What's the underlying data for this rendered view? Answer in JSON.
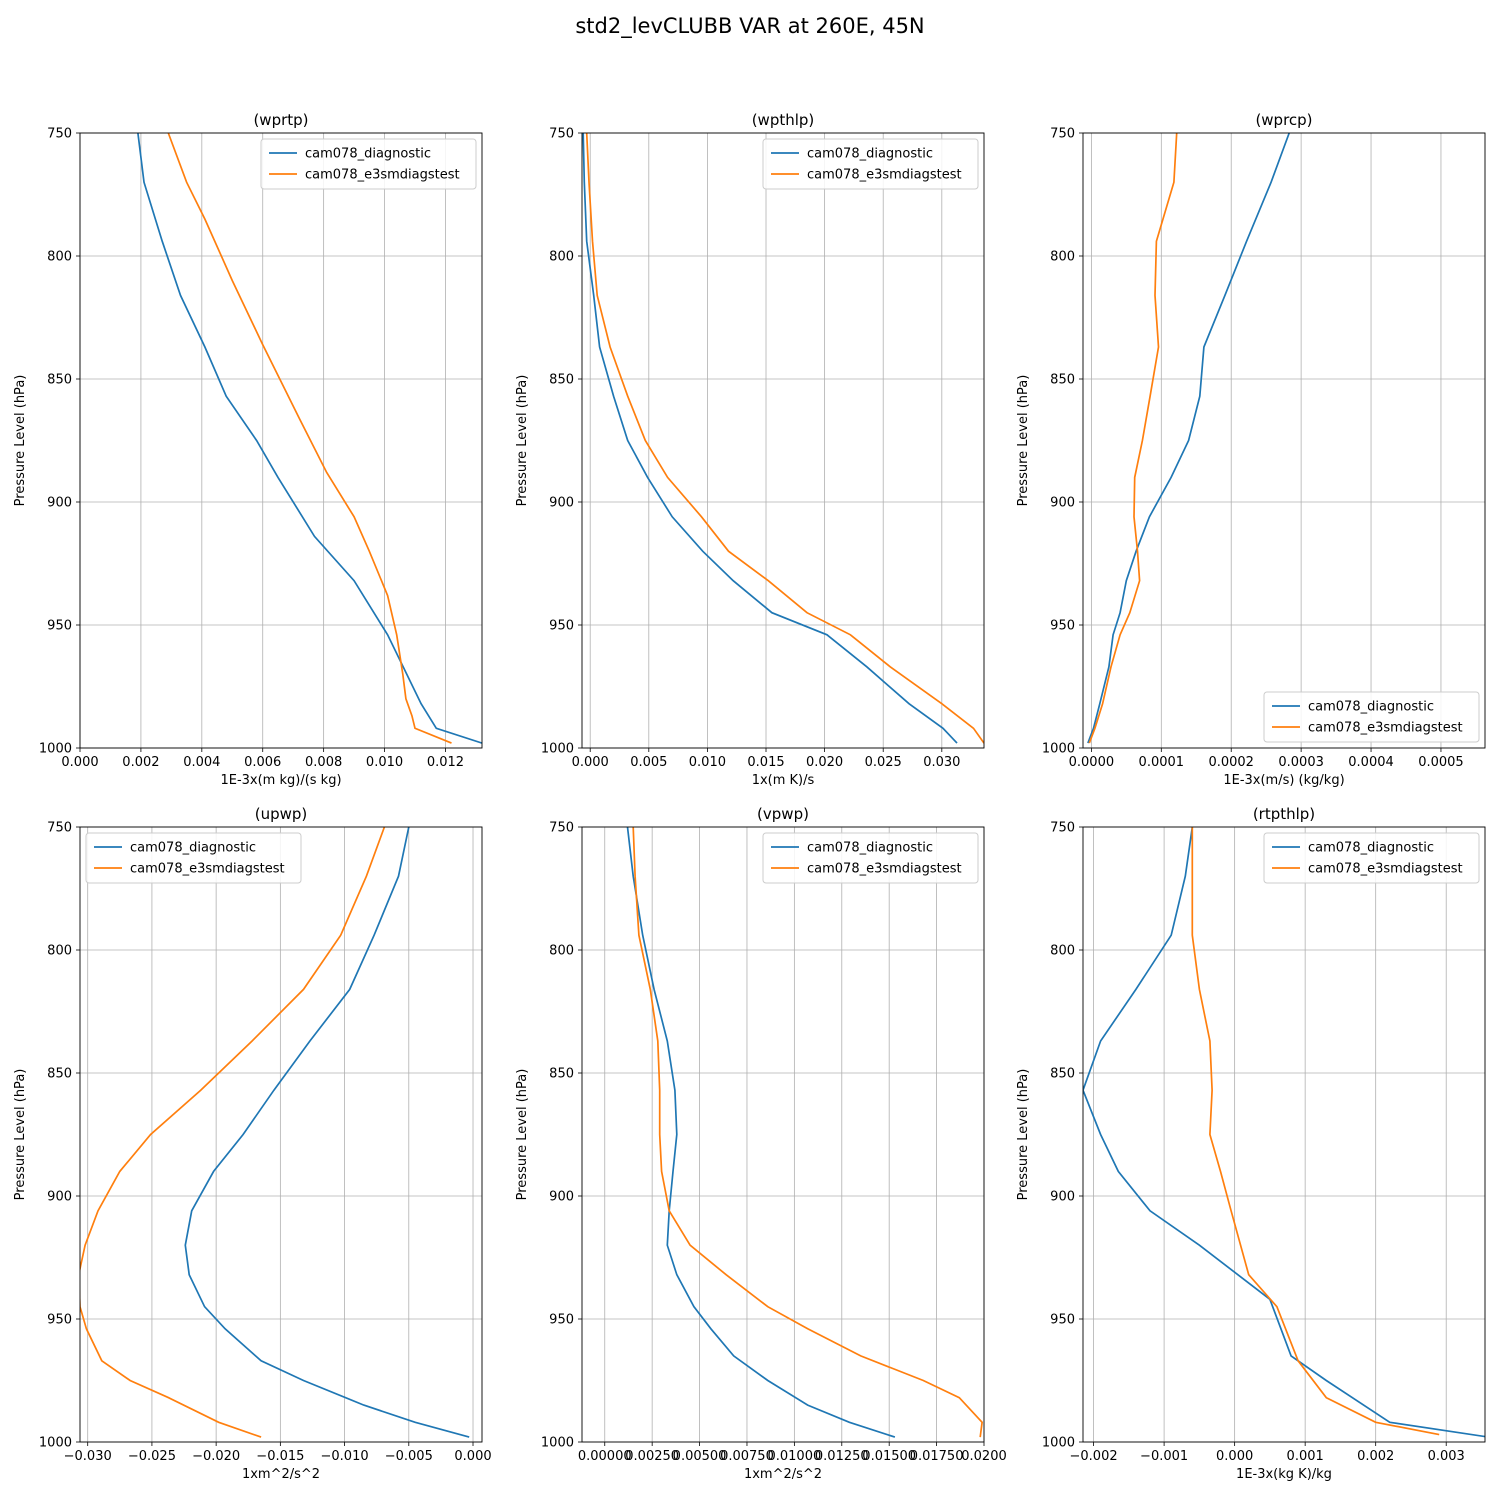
{
  "figure": {
    "title": "std2_levCLUBB VAR at 260E, 45N",
    "colors": {
      "diagnostic": "#1f77b4",
      "e3smdiagstest": "#ff7f0e",
      "grid": "#b0b0b0"
    }
  },
  "chart_data": [
    {
      "type": "line",
      "title": "(wprtp)",
      "xlabel": "1E-3x(m kg)/(s kg)",
      "ylabel": "Pressure Level (hPa)",
      "xlim": [
        0,
        0.0132
      ],
      "ylim": [
        1000,
        750
      ],
      "y_inverted": true,
      "grid": true,
      "legend": "upper right",
      "xticks": [
        "0.000",
        "0.002",
        "0.004",
        "0.006",
        "0.008",
        "0.010",
        "0.012"
      ],
      "yticks": [
        "750",
        "800",
        "850",
        "900",
        "950",
        "1000"
      ],
      "series": [
        {
          "name": "cam078_diagnostic",
          "x": [
            0.0019,
            0.0021,
            0.0027,
            0.0033,
            0.0041,
            0.0048,
            0.0058,
            0.0065,
            0.0077,
            0.009,
            0.0101,
            0.0112,
            0.0117,
            0.0132
          ],
          "y": [
            750,
            770,
            794,
            816,
            837,
            857,
            875,
            890,
            914,
            932,
            954,
            982,
            992,
            998
          ]
        },
        {
          "name": "cam078_e3smdiagstest",
          "x": [
            0.0029,
            0.0035,
            0.0041,
            0.005,
            0.006,
            0.0072,
            0.0081,
            0.009,
            0.0095,
            0.0101,
            0.0104,
            0.0106,
            0.0107,
            0.0109,
            0.011,
            0.0122
          ],
          "y": [
            750,
            770,
            785,
            810,
            836,
            866,
            888,
            906,
            920,
            938,
            954,
            970,
            980,
            987,
            992,
            998
          ]
        }
      ]
    },
    {
      "type": "line",
      "title": "(wpthlp)",
      "xlabel": "1x(m K)/s",
      "ylabel": "Pressure Level (hPa)",
      "xlim": [
        -0.0007,
        0.0336
      ],
      "ylim": [
        1000,
        750
      ],
      "y_inverted": true,
      "grid": true,
      "legend": "upper right",
      "xticks": [
        "0.000",
        "0.005",
        "0.010",
        "0.015",
        "0.020",
        "0.025",
        "0.030"
      ],
      "yticks": [
        "750",
        "800",
        "850",
        "900",
        "950",
        "1000"
      ],
      "series": [
        {
          "name": "cam078_diagnostic",
          "x": [
            -0.0006,
            -0.0005,
            -0.0003,
            0.0003,
            0.0008,
            0.002,
            0.0032,
            0.0049,
            0.007,
            0.0096,
            0.0122,
            0.0155,
            0.0202,
            0.0236,
            0.0272,
            0.0301,
            0.0313
          ],
          "y": [
            750,
            770,
            794,
            816,
            837,
            857,
            875,
            890,
            906,
            920,
            932,
            945,
            954,
            967,
            982,
            992,
            998
          ]
        },
        {
          "name": "cam078_e3smdiagstest",
          "x": [
            -0.0003,
            -0.0001,
            0.0002,
            0.0006,
            0.0017,
            0.0032,
            0.0047,
            0.0066,
            0.0095,
            0.0118,
            0.0152,
            0.0185,
            0.0222,
            0.0256,
            0.03,
            0.0327,
            0.0336
          ],
          "y": [
            750,
            770,
            794,
            816,
            837,
            857,
            875,
            890,
            906,
            920,
            932,
            945,
            954,
            967,
            982,
            992,
            998
          ]
        }
      ]
    },
    {
      "type": "line",
      "title": "(wprcp)",
      "xlabel": "1E-3x(m/s) (kg/kg)",
      "ylabel": "Pressure Level (hPa)",
      "xlim": [
        -1.2e-05,
        0.000563
      ],
      "ylim": [
        1000,
        750
      ],
      "y_inverted": true,
      "grid": true,
      "legend": "lower right",
      "xticks": [
        "0.0000",
        "0.0001",
        "0.0002",
        "0.0003",
        "0.0004",
        "0.0005"
      ],
      "yticks": [
        "750",
        "800",
        "850",
        "900",
        "950",
        "1000"
      ],
      "series": [
        {
          "name": "cam078_diagnostic",
          "x": [
            0.000283,
            0.000257,
            0.000222,
            0.000191,
            0.000161,
            0.000155,
            0.000139,
            0.000114,
            8.3e-05,
            6.4e-05,
            5e-05,
            4.1e-05,
            3.1e-05,
            2.5e-05,
            1.2e-05,
            3e-06,
            -5e-06
          ],
          "y": [
            750,
            770,
            794,
            816,
            837,
            857,
            875,
            890,
            906,
            920,
            932,
            945,
            954,
            967,
            982,
            992,
            998
          ]
        },
        {
          "name": "cam078_e3smdiagstest",
          "x": [
            0.000122,
            0.000118,
            9.3e-05,
            9.1e-05,
            9.6e-05,
            8.4e-05,
            7.3e-05,
            6.2e-05,
            6.1e-05,
            6.6e-05,
            6.9e-05,
            5.5e-05,
            4.1e-05,
            2.8e-05,
            1.6e-05,
            5e-06,
            -3e-06
          ],
          "y": [
            750,
            770,
            794,
            816,
            837,
            857,
            875,
            890,
            906,
            920,
            932,
            945,
            954,
            967,
            982,
            992,
            998
          ]
        }
      ]
    },
    {
      "type": "line",
      "title": "(upwp)",
      "xlabel": "1xm^2/s^2",
      "ylabel": "Pressure Level (hPa)",
      "xlim": [
        -0.0306,
        0.0007
      ],
      "ylim": [
        1000,
        750
      ],
      "y_inverted": true,
      "grid": true,
      "legend": "upper left",
      "xticks": [
        "−0.030",
        "−0.025",
        "−0.020",
        "−0.015",
        "−0.010",
        "−0.005",
        "0.000"
      ],
      "yticks": [
        "750",
        "800",
        "850",
        "900",
        "950",
        "1000"
      ],
      "series": [
        {
          "name": "cam078_diagnostic",
          "x": [
            -0.005,
            -0.0058,
            -0.0077,
            -0.0096,
            -0.0127,
            -0.0155,
            -0.0179,
            -0.0202,
            -0.0219,
            -0.0224,
            -0.0221,
            -0.0209,
            -0.0193,
            -0.0165,
            -0.0132,
            -0.0085,
            -0.0045,
            -0.0003
          ],
          "y": [
            750,
            770,
            794,
            816,
            837,
            857,
            875,
            890,
            906,
            920,
            932,
            945,
            954,
            967,
            975,
            985,
            992,
            998
          ]
        },
        {
          "name": "cam078_e3smdiagstest",
          "x": [
            -0.0069,
            -0.0083,
            -0.0103,
            -0.0132,
            -0.0172,
            -0.0212,
            -0.0251,
            -0.0275,
            -0.0292,
            -0.0302,
            -0.0307,
            -0.0306,
            -0.0301,
            -0.0289,
            -0.0267,
            -0.0237,
            -0.0198,
            -0.0165
          ],
          "y": [
            750,
            770,
            794,
            816,
            837,
            857,
            875,
            890,
            906,
            920,
            932,
            945,
            954,
            967,
            975,
            982,
            992,
            998
          ]
        }
      ]
    },
    {
      "type": "line",
      "title": "(vpwp)",
      "xlabel": "1xm^2/s^2",
      "ylabel": "Pressure Level (hPa)",
      "xlim": [
        -0.0012,
        0.02
      ],
      "ylim": [
        1000,
        750
      ],
      "y_inverted": true,
      "grid": true,
      "legend": "upper right",
      "xticks": [
        "0.00000",
        "0.00250",
        "0.00500",
        "0.00750",
        "0.01000",
        "0.01250",
        "0.01500",
        "0.01750",
        "0.0200"
      ],
      "yticks": [
        "750",
        "800",
        "850",
        "900",
        "950",
        "1000"
      ],
      "series": [
        {
          "name": "cam078_diagnostic",
          "x": [
            0.0012,
            0.0015,
            0.002,
            0.0026,
            0.0033,
            0.0037,
            0.0038,
            0.0036,
            0.0034,
            0.0033,
            0.0038,
            0.0047,
            0.0056,
            0.0068,
            0.0086,
            0.0107,
            0.0129,
            0.0153
          ],
          "y": [
            750,
            770,
            794,
            816,
            837,
            857,
            875,
            890,
            906,
            920,
            932,
            945,
            954,
            965,
            975,
            985,
            992,
            998
          ]
        },
        {
          "name": "cam078_e3smdiagstest",
          "x": [
            0.0015,
            0.0016,
            0.0018,
            0.0024,
            0.0028,
            0.0029,
            0.0029,
            0.003,
            0.0034,
            0.0045,
            0.0064,
            0.0086,
            0.0107,
            0.0135,
            0.0168,
            0.0187,
            0.0199,
            0.0198
          ],
          "y": [
            750,
            770,
            794,
            816,
            837,
            857,
            875,
            890,
            906,
            920,
            932,
            945,
            954,
            965,
            975,
            982,
            992,
            998
          ]
        }
      ]
    },
    {
      "type": "line",
      "title": "(rtpthlp)",
      "xlabel": "1E-3x(kg K)/kg",
      "ylabel": "Pressure Level (hPa)",
      "xlim": [
        -0.00215,
        0.00355
      ],
      "ylim": [
        1000,
        750
      ],
      "y_inverted": true,
      "grid": true,
      "legend": "upper right",
      "xticks": [
        "−0.002",
        "−0.001",
        "0.000",
        "0.001",
        "0.002",
        "0.003"
      ],
      "yticks": [
        "750",
        "800",
        "850",
        "900",
        "950",
        "1000"
      ],
      "series": [
        {
          "name": "cam078_diagnostic",
          "x": [
            -0.0006,
            -0.0007,
            -0.0009,
            -0.0014,
            -0.0019,
            -0.00215,
            -0.0019,
            -0.00165,
            -0.0012,
            -0.0005,
            0.0005,
            0.0008,
            0.0013,
            0.0022,
            0.0036
          ],
          "y": [
            750,
            770,
            794,
            816,
            837,
            857,
            875,
            890,
            906,
            920,
            942,
            965,
            975,
            992,
            998
          ]
        },
        {
          "name": "cam078_e3smdiagstest",
          "x": [
            -0.0006,
            -0.0006,
            -0.0006,
            -0.0005,
            -0.00035,
            -0.00032,
            -0.00035,
            -0.0002,
            -5e-05,
            0.0002,
            0.0006,
            0.0009,
            0.0013,
            0.002,
            0.0029
          ],
          "y": [
            750,
            770,
            794,
            816,
            837,
            857,
            875,
            890,
            906,
            932,
            945,
            967,
            982,
            992,
            997
          ]
        }
      ]
    }
  ]
}
